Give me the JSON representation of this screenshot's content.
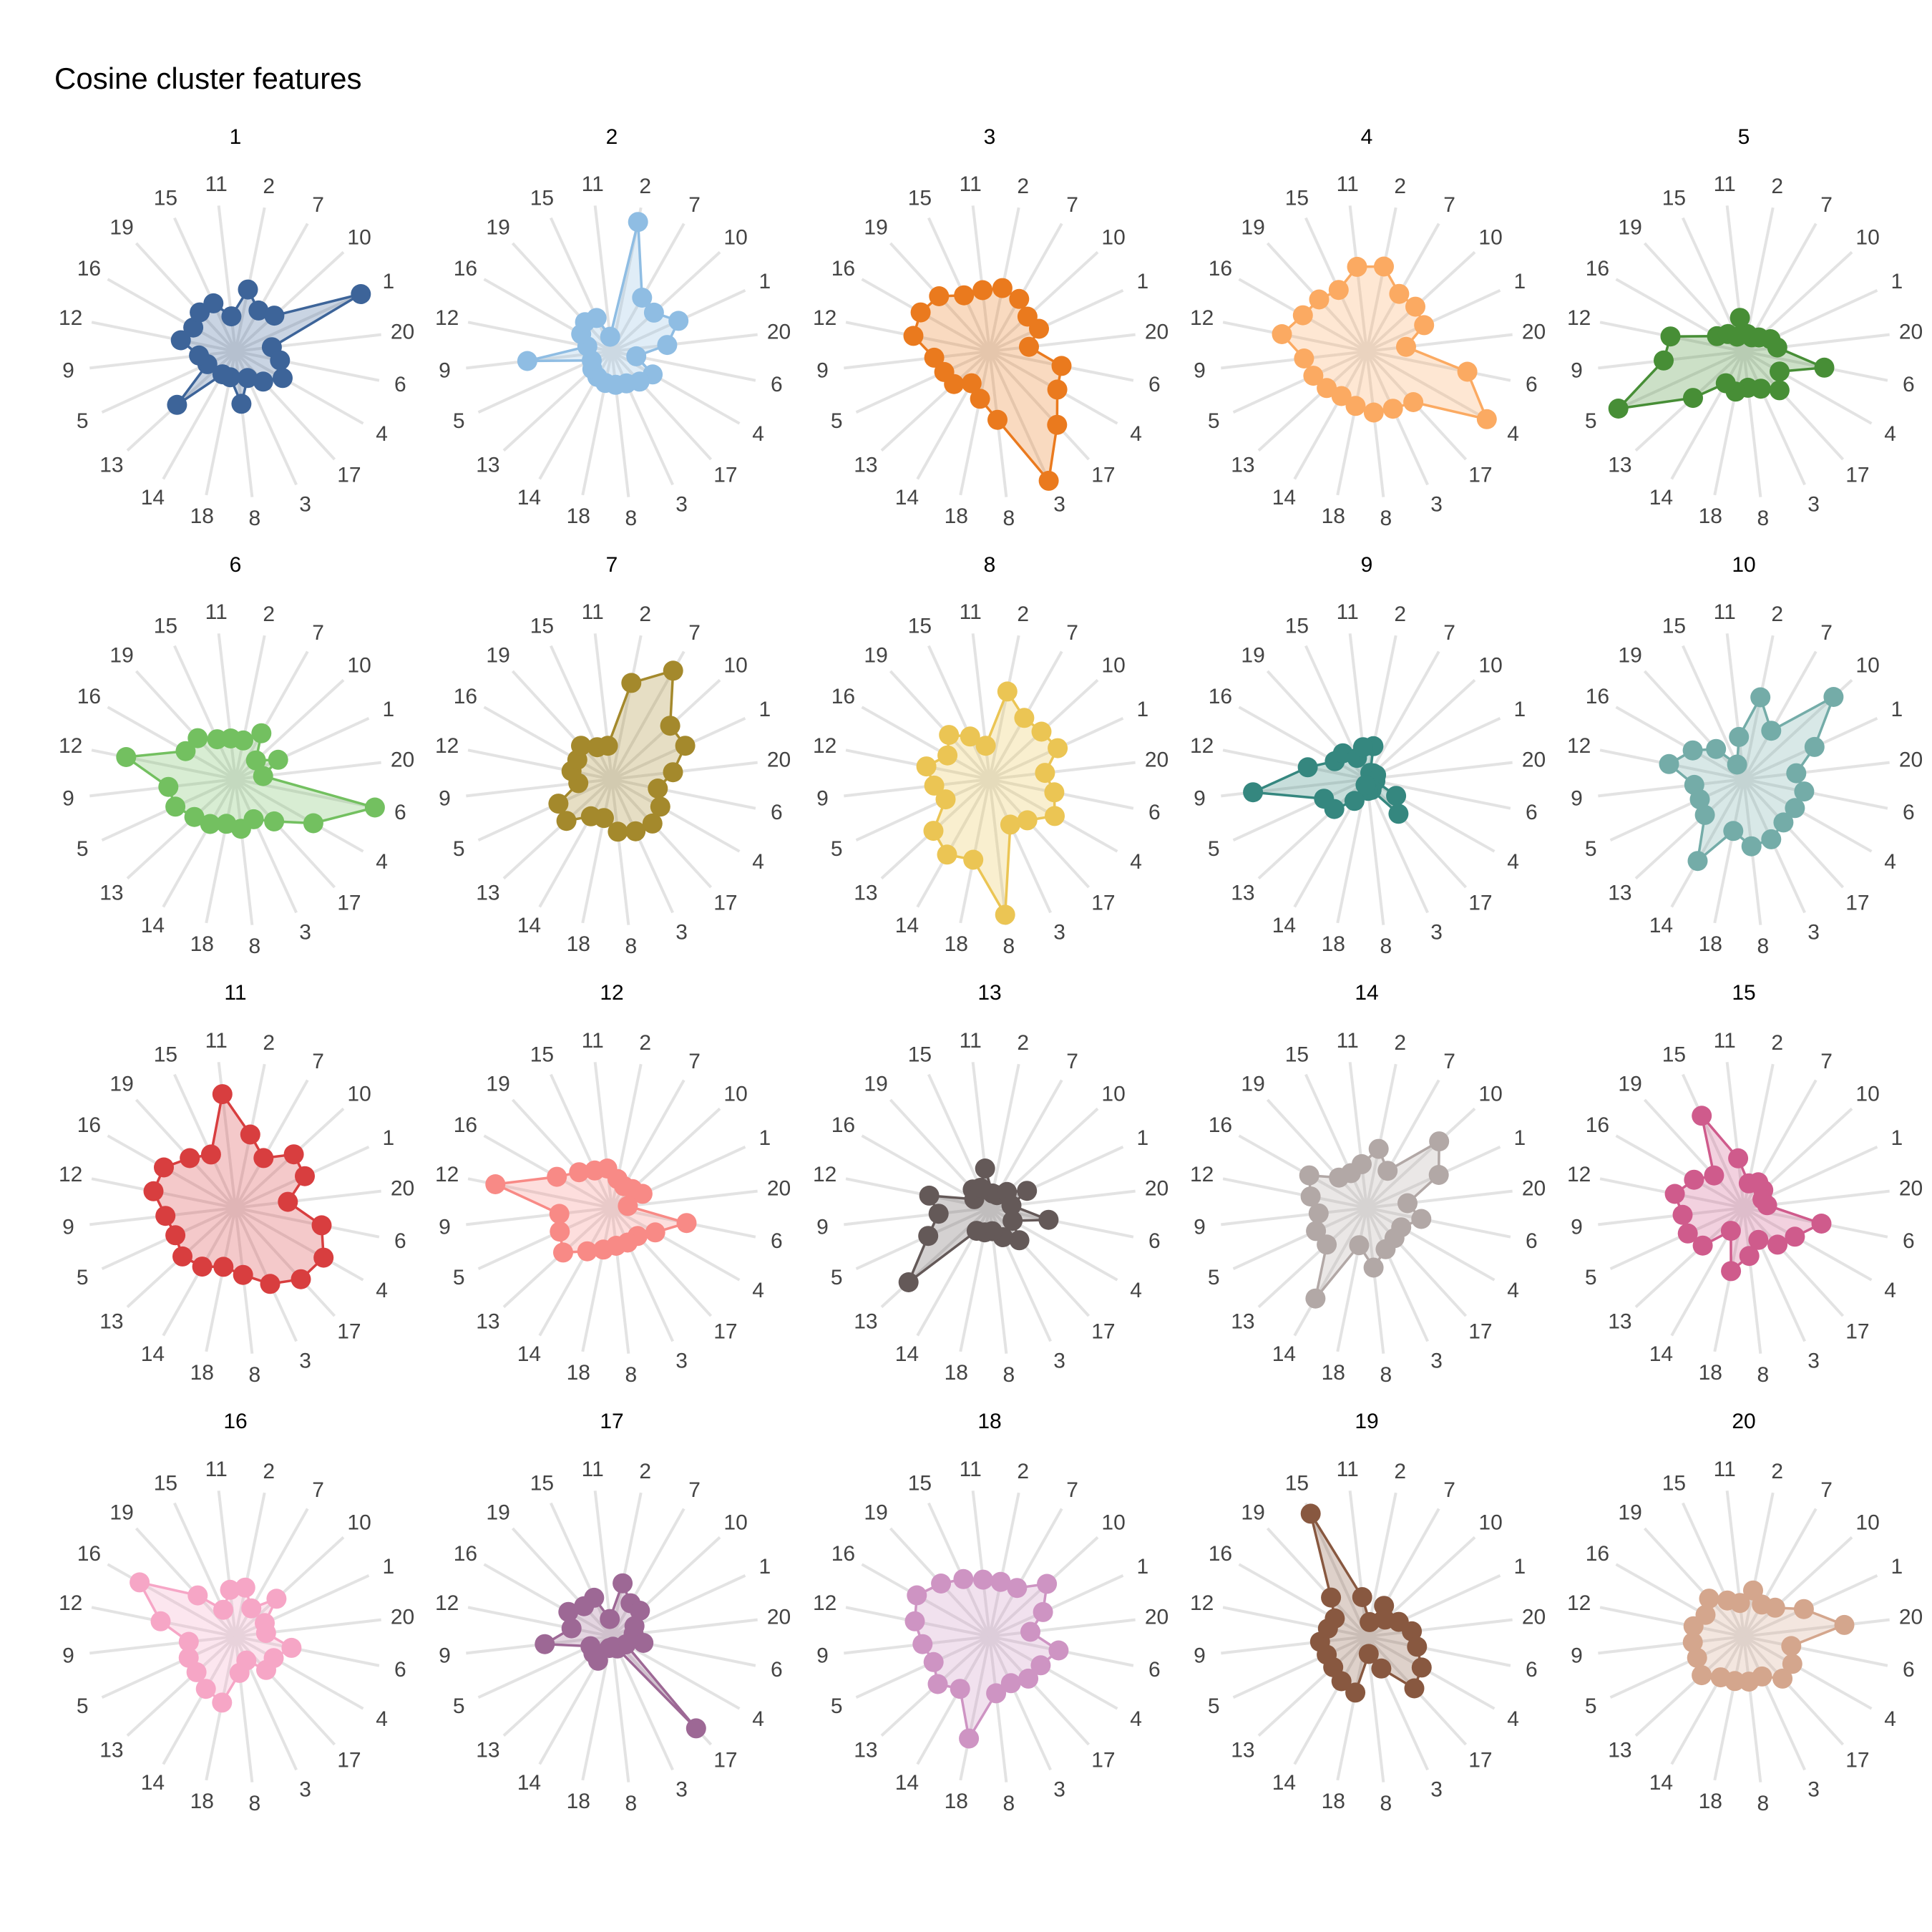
{
  "title": "Cosine cluster features",
  "chart_data": {
    "type": "radar",
    "axes": [
      "2",
      "7",
      "10",
      "1",
      "20",
      "6",
      "4",
      "17",
      "3",
      "8",
      "18",
      "14",
      "13",
      "5",
      "9",
      "12",
      "16",
      "19",
      "15",
      "11"
    ],
    "rmax": 1.0,
    "grid": true,
    "legend": "none",
    "series": [
      {
        "name": "1",
        "color": "#3d6499",
        "values": [
          0.43,
          0.32,
          0.36,
          0.94,
          0.25,
          0.31,
          0.37,
          0.28,
          0.2,
          0.36,
          0.18,
          0.18,
          0.54,
          0.21,
          0.25,
          0.38,
          0.33,
          0.36,
          0.36,
          0.24
        ]
      },
      {
        "name": "2",
        "color": "#8fbde3",
        "values": [
          0.9,
          0.42,
          0.39,
          0.5,
          0.38,
          0.17,
          0.32,
          0.28,
          0.24,
          0.23,
          0.22,
          0.2,
          0.18,
          0.15,
          0.58,
          0.17,
          0.24,
          0.27,
          0.25,
          0.1
        ]
      },
      {
        "name": "3",
        "color": "#ea7a1e",
        "values": [
          0.44,
          0.41,
          0.35,
          0.37,
          0.27,
          0.5,
          0.53,
          0.68,
          0.97,
          0.47,
          0.33,
          0.25,
          0.33,
          0.34,
          0.38,
          0.53,
          0.54,
          0.51,
          0.42,
          0.42
        ]
      },
      {
        "name": "4",
        "color": "#fbaa62",
        "values": [
          0.59,
          0.45,
          0.45,
          0.43,
          0.27,
          0.7,
          0.94,
          0.47,
          0.43,
          0.42,
          0.38,
          0.35,
          0.37,
          0.4,
          0.43,
          0.59,
          0.5,
          0.48,
          0.46,
          0.58
        ]
      },
      {
        "name": "5",
        "color": "#478e36",
        "values": [
          0.12,
          0.11,
          0.14,
          0.2,
          0.23,
          0.56,
          0.28,
          0.36,
          0.28,
          0.25,
          0.28,
          0.25,
          0.47,
          0.94,
          0.55,
          0.51,
          0.21,
          0.16,
          0.11,
          0.23
        ]
      },
      {
        "name": "6",
        "color": "#73c060",
        "values": [
          0.27,
          0.36,
          0.19,
          0.32,
          0.19,
          0.97,
          0.61,
          0.39,
          0.3,
          0.34,
          0.31,
          0.35,
          0.38,
          0.45,
          0.46,
          0.76,
          0.39,
          0.38,
          0.3,
          0.28
        ]
      },
      {
        "name": "7",
        "color": "#a4892c",
        "values": [
          0.67,
          0.85,
          0.54,
          0.55,
          0.42,
          0.32,
          0.38,
          0.41,
          0.39,
          0.36,
          0.27,
          0.29,
          0.42,
          0.4,
          0.23,
          0.28,
          0.27,
          0.31,
          0.24,
          0.23
        ]
      },
      {
        "name": "8",
        "color": "#ebc554",
        "values": [
          0.61,
          0.48,
          0.48,
          0.51,
          0.38,
          0.45,
          0.51,
          0.38,
          0.34,
          0.93,
          0.56,
          0.59,
          0.52,
          0.33,
          0.38,
          0.44,
          0.33,
          0.41,
          0.32,
          0.23
        ]
      },
      {
        "name": "9",
        "color": "#35877f",
        "values": [
          0.23,
          0.05,
          0.06,
          0.07,
          0.05,
          0.06,
          0.23,
          0.32,
          0.08,
          0.08,
          0.04,
          0.17,
          0.3,
          0.32,
          0.78,
          0.41,
          0.25,
          0.24,
          0.16,
          0.22
        ]
      },
      {
        "name": "10",
        "color": "#74aca8",
        "values": [
          0.57,
          0.38,
          0.83,
          0.53,
          0.36,
          0.42,
          0.4,
          0.4,
          0.45,
          0.46,
          0.36,
          0.64,
          0.36,
          0.33,
          0.34,
          0.52,
          0.4,
          0.28,
          0.11,
          0.29
        ]
      },
      {
        "name": "11",
        "color": "#d83e3f",
        "values": [
          0.51,
          0.39,
          0.54,
          0.52,
          0.36,
          0.6,
          0.69,
          0.66,
          0.57,
          0.46,
          0.41,
          0.46,
          0.49,
          0.45,
          0.48,
          0.57,
          0.56,
          0.46,
          0.4,
          0.78
        ]
      },
      {
        "name": "12",
        "color": "#f88a86",
        "values": [
          0.2,
          0.17,
          0.19,
          0.23,
          0.11,
          0.52,
          0.34,
          0.26,
          0.26,
          0.26,
          0.29,
          0.34,
          0.45,
          0.39,
          0.36,
          0.81,
          0.43,
          0.33,
          0.28,
          0.27
        ]
      },
      {
        "name": "13",
        "color": "#645958",
        "values": [
          0.1,
          0.1,
          0.16,
          0.28,
          0.15,
          0.41,
          0.18,
          0.3,
          0.22,
          0.16,
          0.17,
          0.18,
          0.75,
          0.46,
          0.35,
          0.42,
          0.12,
          0.17,
          0.15,
          0.27
        ]
      },
      {
        "name": "14",
        "color": "#b2a8a6",
        "values": [
          0.41,
          0.29,
          0.67,
          0.54,
          0.28,
          0.38,
          0.27,
          0.28,
          0.31,
          0.41,
          0.26,
          0.71,
          0.37,
          0.38,
          0.33,
          0.39,
          0.45,
          0.28,
          0.26,
          0.3
        ]
      },
      {
        "name": "15",
        "color": "#cf5b8c",
        "values": [
          0.17,
          0.2,
          0.18,
          0.14,
          0.16,
          0.54,
          0.4,
          0.34,
          0.24,
          0.33,
          0.44,
          0.18,
          0.38,
          0.42,
          0.42,
          0.48,
          0.39,
          0.3,
          0.69,
          0.34
        ]
      },
      {
        "name": "16",
        "color": "#f6a6c6",
        "values": [
          0.34,
          0.22,
          0.38,
          0.22,
          0.21,
          0.39,
          0.3,
          0.31,
          0.18,
          0.25,
          0.46,
          0.41,
          0.36,
          0.35,
          0.32,
          0.52,
          0.75,
          0.38,
          0.2,
          0.32
        ]
      },
      {
        "name": "17",
        "color": "#9d6895",
        "values": [
          0.37,
          0.26,
          0.26,
          0.17,
          0.15,
          0.22,
          0.11,
          0.85,
          0.09,
          0.07,
          0.08,
          0.19,
          0.17,
          0.16,
          0.46,
          0.28,
          0.34,
          0.28,
          0.29,
          0.12
        ]
      },
      {
        "name": "18",
        "color": "#ce94c3",
        "values": [
          0.38,
          0.38,
          0.53,
          0.4,
          0.28,
          0.48,
          0.4,
          0.39,
          0.35,
          0.39,
          0.71,
          0.41,
          0.48,
          0.42,
          0.46,
          0.52,
          0.57,
          0.49,
          0.43,
          0.39
        ]
      },
      {
        "name": "19",
        "color": "#885840",
        "values": [
          0.1,
          0.24,
          0.17,
          0.24,
          0.31,
          0.35,
          0.43,
          0.48,
          0.24,
          0.12,
          0.39,
          0.35,
          0.31,
          0.3,
          0.32,
          0.27,
          0.25,
          0.36,
          0.92,
          0.27
        ]
      },
      {
        "name": "20",
        "color": "#d4a68d",
        "values": [
          0.32,
          0.25,
          0.29,
          0.45,
          0.69,
          0.33,
          0.38,
          0.39,
          0.3,
          0.31,
          0.31,
          0.32,
          0.39,
          0.35,
          0.35,
          0.35,
          0.3,
          0.35,
          0.27,
          0.23
        ]
      }
    ]
  }
}
